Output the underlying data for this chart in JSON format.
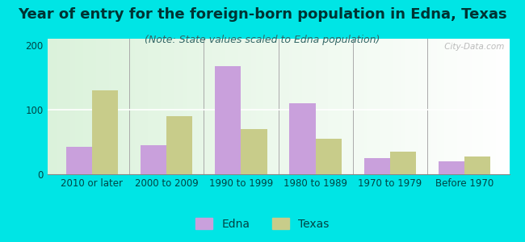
{
  "title": "Year of entry for the foreign-born population in Edna, Texas",
  "subtitle": "(Note: State values scaled to Edna population)",
  "categories": [
    "2010 or later",
    "2000 to 2009",
    "1990 to 1999",
    "1980 to 1989",
    "1970 to 1979",
    "Before 1970"
  ],
  "edna_values": [
    43,
    45,
    168,
    110,
    25,
    20
  ],
  "texas_values": [
    130,
    90,
    70,
    55,
    35,
    28
  ],
  "edna_color": "#c9a0dc",
  "texas_color": "#c8cc8a",
  "ylim": [
    0,
    210
  ],
  "yticks": [
    0,
    100,
    200
  ],
  "bar_width": 0.35,
  "background_color": "#00e5e5",
  "title_color": "#003333",
  "subtitle_color": "#336666",
  "tick_color": "#004444",
  "title_fontsize": 13,
  "subtitle_fontsize": 9,
  "tick_fontsize": 8.5,
  "legend_fontsize": 10,
  "watermark": " City-Data.com"
}
